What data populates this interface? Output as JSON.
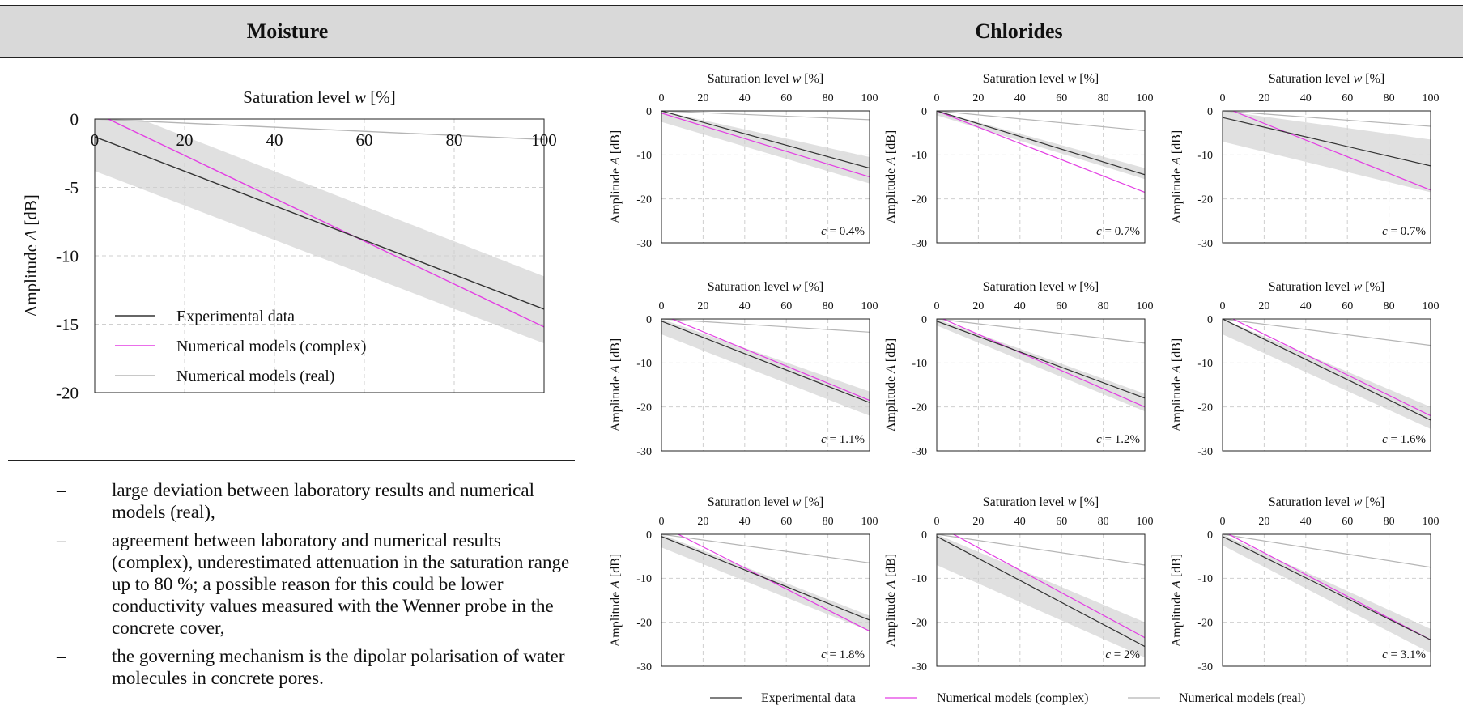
{
  "headers": {
    "moisture": "Moisture",
    "chlorides": "Chlorides"
  },
  "notes": [
    "large deviation between laboratory results and numerical models (real),",
    "agreement between laboratory and numerical results (complex), underestimated attenuation in the saturation range up to 80 %; a possible reason for this could be lower conductivity values measured with the Wenner probe in the concrete cover,",
    "the governing mechanism is the dipolar polarisation of water molecules in concrete pores."
  ],
  "note_dash": "–",
  "legend": {
    "experimental": "Experimental data",
    "complex": "Numerical models (complex)",
    "real": "Numerical models (real)"
  },
  "colors": {
    "experimental": "#333333",
    "complex": "#e33ee3",
    "real": "#b5b5b5",
    "band": "#e0e0e0",
    "grid": "#cfcfcf"
  },
  "chart_data": [
    {
      "type": "line",
      "panel": "moisture",
      "xlabel": "Saturation level w [%]",
      "ylabel": "Amplitude A [dB]",
      "xlim": [
        0,
        100
      ],
      "ylim": [
        -20,
        0
      ],
      "xticks": [
        0,
        20,
        40,
        60,
        80,
        100
      ],
      "yticks": [
        0,
        -5,
        -10,
        -15,
        -20
      ],
      "grid": true,
      "legend_position": "bottom-left",
      "series": [
        {
          "name": "Experimental data",
          "x": [
            0,
            100
          ],
          "y": [
            -1.3,
            -13.9
          ]
        },
        {
          "name": "Numerical models (complex)",
          "x": [
            3,
            100
          ],
          "y": [
            0,
            -15.2
          ]
        },
        {
          "name": "Numerical models (real)",
          "x": [
            0,
            100
          ],
          "y": [
            0,
            -1.5
          ]
        }
      ],
      "band": {
        "x": [
          0,
          100
        ],
        "upper": [
          1.3,
          -11.5
        ],
        "lower": [
          -3.8,
          -16.4
        ]
      }
    },
    {
      "type": "line",
      "panel": "chlorides",
      "label": "c = 0.4%",
      "xlabel": "Saturation level w [%]",
      "ylabel": "Amplitude A [dB]",
      "xlim": [
        0,
        100
      ],
      "ylim": [
        -30,
        0
      ],
      "xticks": [
        0,
        20,
        40,
        60,
        80,
        100
      ],
      "yticks": [
        0,
        -10,
        -20,
        -30
      ],
      "grid": true,
      "series": [
        {
          "name": "Experimental data",
          "x": [
            0,
            100
          ],
          "y": [
            0,
            -13
          ]
        },
        {
          "name": "Numerical models (complex)",
          "x": [
            0,
            100
          ],
          "y": [
            -0.5,
            -15
          ]
        },
        {
          "name": "Numerical models (real)",
          "x": [
            0,
            100
          ],
          "y": [
            0,
            -2
          ]
        }
      ],
      "band": {
        "x": [
          0,
          100
        ],
        "upper": [
          0,
          -10.5
        ],
        "lower": [
          -2.5,
          -16.5
        ]
      }
    },
    {
      "type": "line",
      "panel": "chlorides",
      "label": "c = 0.7%",
      "xlabel": "Saturation level w [%]",
      "ylabel": "Amplitude A [dB]",
      "xlim": [
        0,
        100
      ],
      "ylim": [
        -30,
        0
      ],
      "xticks": [
        0,
        20,
        40,
        60,
        80,
        100
      ],
      "yticks": [
        0,
        -10,
        -20,
        -30
      ],
      "grid": true,
      "series": [
        {
          "name": "Experimental data",
          "x": [
            0,
            100
          ],
          "y": [
            0,
            -14.5
          ]
        },
        {
          "name": "Numerical models (complex)",
          "x": [
            0,
            100
          ],
          "y": [
            0,
            -18.5
          ]
        },
        {
          "name": "Numerical models (real)",
          "x": [
            0,
            100
          ],
          "y": [
            0,
            -4.5
          ]
        }
      ],
      "band": {
        "x": [
          0,
          100
        ],
        "upper": [
          0,
          -13
        ],
        "lower": [
          -1,
          -15.5
        ]
      }
    },
    {
      "type": "line",
      "panel": "chlorides",
      "label": "c = 0.7%",
      "xlabel": "Saturation level w [%]",
      "ylabel": "Amplitude A [dB]",
      "xlim": [
        0,
        100
      ],
      "ylim": [
        -30,
        0
      ],
      "xticks": [
        0,
        20,
        40,
        60,
        80,
        100
      ],
      "yticks": [
        0,
        -10,
        -20,
        -30
      ],
      "grid": true,
      "series": [
        {
          "name": "Experimental data",
          "x": [
            0,
            100
          ],
          "y": [
            -1.5,
            -12.5
          ]
        },
        {
          "name": "Numerical models (complex)",
          "x": [
            5,
            100
          ],
          "y": [
            0,
            -18
          ]
        },
        {
          "name": "Numerical models (real)",
          "x": [
            0,
            100
          ],
          "y": [
            0,
            -3.5
          ]
        }
      ],
      "band": {
        "x": [
          0,
          100
        ],
        "upper": [
          0,
          -6.5
        ],
        "lower": [
          -7,
          -18.5
        ]
      }
    },
    {
      "type": "line",
      "panel": "chlorides",
      "label": "c = 1.1%",
      "xlabel": "Saturation level w [%]",
      "ylabel": "Amplitude A [dB]",
      "xlim": [
        0,
        100
      ],
      "ylim": [
        -30,
        0
      ],
      "xticks": [
        0,
        20,
        40,
        60,
        80,
        100
      ],
      "yticks": [
        0,
        -10,
        -20,
        -30
      ],
      "grid": true,
      "series": [
        {
          "name": "Experimental data",
          "x": [
            0,
            100
          ],
          "y": [
            -0.5,
            -19
          ]
        },
        {
          "name": "Numerical models (complex)",
          "x": [
            5,
            100
          ],
          "y": [
            0,
            -18.5
          ]
        },
        {
          "name": "Numerical models (real)",
          "x": [
            0,
            100
          ],
          "y": [
            0,
            -3
          ]
        }
      ],
      "band": {
        "x": [
          0,
          100
        ],
        "upper": [
          0,
          -16.5
        ],
        "lower": [
          -3.5,
          -22
        ]
      }
    },
    {
      "type": "line",
      "panel": "chlorides",
      "label": "c = 1.2%",
      "xlabel": "Saturation level w [%]",
      "ylabel": "Amplitude A [dB]",
      "xlim": [
        0,
        100
      ],
      "ylim": [
        -30,
        0
      ],
      "xticks": [
        0,
        20,
        40,
        60,
        80,
        100
      ],
      "yticks": [
        0,
        -10,
        -20,
        -30
      ],
      "grid": true,
      "series": [
        {
          "name": "Experimental data",
          "x": [
            0,
            100
          ],
          "y": [
            -0.5,
            -18
          ]
        },
        {
          "name": "Numerical models (complex)",
          "x": [
            3,
            100
          ],
          "y": [
            0,
            -20
          ]
        },
        {
          "name": "Numerical models (real)",
          "x": [
            0,
            100
          ],
          "y": [
            0,
            -5.5
          ]
        }
      ],
      "band": {
        "x": [
          0,
          100
        ],
        "upper": [
          0,
          -17
        ],
        "lower": [
          -1.5,
          -21
        ]
      }
    },
    {
      "type": "line",
      "panel": "chlorides",
      "label": "c = 1.6%",
      "xlabel": "Saturation level w [%]",
      "ylabel": "Amplitude A [dB]",
      "xlim": [
        0,
        100
      ],
      "ylim": [
        -30,
        0
      ],
      "xticks": [
        0,
        20,
        40,
        60,
        80,
        100
      ],
      "yticks": [
        0,
        -10,
        -20,
        -30
      ],
      "grid": true,
      "series": [
        {
          "name": "Experimental data",
          "x": [
            0,
            100
          ],
          "y": [
            0,
            -23
          ]
        },
        {
          "name": "Numerical models (complex)",
          "x": [
            5,
            100
          ],
          "y": [
            0,
            -22
          ]
        },
        {
          "name": "Numerical models (real)",
          "x": [
            0,
            100
          ],
          "y": [
            0,
            -6
          ]
        }
      ],
      "band": {
        "x": [
          0,
          100
        ],
        "upper": [
          0,
          -20
        ],
        "lower": [
          -3.5,
          -25
        ]
      }
    },
    {
      "type": "line",
      "panel": "chlorides",
      "label": "c = 1.8%",
      "xlabel": "Saturation level w [%]",
      "ylabel": "Amplitude A [dB]",
      "xlim": [
        0,
        100
      ],
      "ylim": [
        -30,
        0
      ],
      "xticks": [
        0,
        20,
        40,
        60,
        80,
        100
      ],
      "yticks": [
        0,
        -10,
        -20,
        -30
      ],
      "grid": true,
      "series": [
        {
          "name": "Experimental data",
          "x": [
            0,
            100
          ],
          "y": [
            -0.5,
            -19.5
          ]
        },
        {
          "name": "Numerical models (complex)",
          "x": [
            8,
            100
          ],
          "y": [
            0,
            -22
          ]
        },
        {
          "name": "Numerical models (real)",
          "x": [
            0,
            100
          ],
          "y": [
            0,
            -6.5
          ]
        }
      ],
      "band": {
        "x": [
          0,
          100
        ],
        "upper": [
          0,
          -18.5
        ],
        "lower": [
          -3,
          -22
        ]
      }
    },
    {
      "type": "line",
      "panel": "chlorides",
      "label": "c = 2%",
      "xlabel": "Saturation level w [%]",
      "ylabel": "Amplitude A [dB]",
      "xlim": [
        0,
        100
      ],
      "ylim": [
        -30,
        0
      ],
      "xticks": [
        0,
        20,
        40,
        60,
        80,
        100
      ],
      "yticks": [
        0,
        -10,
        -20,
        -30
      ],
      "grid": true,
      "series": [
        {
          "name": "Experimental data",
          "x": [
            0,
            100
          ],
          "y": [
            -0.5,
            -25.5
          ]
        },
        {
          "name": "Numerical models (complex)",
          "x": [
            8,
            100
          ],
          "y": [
            0,
            -23.5
          ]
        },
        {
          "name": "Numerical models (real)",
          "x": [
            0,
            100
          ],
          "y": [
            0,
            -7
          ]
        }
      ],
      "band": {
        "x": [
          0,
          100
        ],
        "upper": [
          0,
          -20
        ],
        "lower": [
          -7,
          -28
        ]
      }
    },
    {
      "type": "line",
      "panel": "chlorides",
      "label": "c = 3.1%",
      "xlabel": "Saturation level w [%]",
      "ylabel": "Amplitude A [dB]",
      "xlim": [
        0,
        100
      ],
      "ylim": [
        -30,
        0
      ],
      "xticks": [
        0,
        20,
        40,
        60,
        80,
        100
      ],
      "yticks": [
        0,
        -10,
        -20,
        -30
      ],
      "grid": true,
      "series": [
        {
          "name": "Experimental data",
          "x": [
            0,
            100
          ],
          "y": [
            -0.5,
            -24
          ]
        },
        {
          "name": "Numerical models (complex)",
          "x": [
            3,
            100
          ],
          "y": [
            0,
            -24
          ]
        },
        {
          "name": "Numerical models (real)",
          "x": [
            0,
            100
          ],
          "y": [
            0,
            -7.5
          ]
        }
      ],
      "band": {
        "x": [
          0,
          100
        ],
        "upper": [
          0,
          -21.5
        ],
        "lower": [
          -2.5,
          -27
        ]
      }
    }
  ]
}
